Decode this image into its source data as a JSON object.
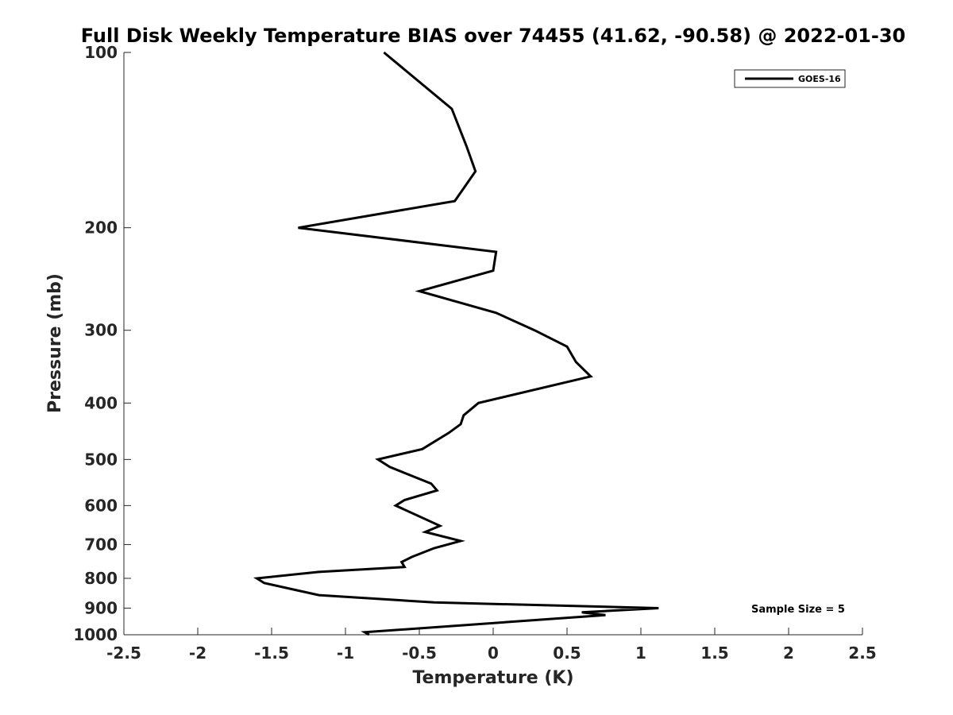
{
  "chart_data": {
    "type": "line",
    "title": "Full Disk Weekly Temperature BIAS over 74455 (41.62, -90.58) @ 2022-01-30",
    "xlabel": "Temperature (K)",
    "ylabel": "Pressure (mb)",
    "xlim": [
      -2.5,
      2.5
    ],
    "ylim": [
      1000,
      100
    ],
    "y_scale": "log",
    "y_reversed": true,
    "grid": false,
    "legend_position": "top-right",
    "x_ticks": [
      -2.5,
      -2,
      -1.5,
      -1,
      -0.5,
      0,
      0.5,
      1,
      1.5,
      2,
      2.5
    ],
    "x_tick_labels": [
      "-2.5",
      "-2",
      "-1.5",
      "-1",
      "-0.5",
      "0",
      "0.5",
      "1",
      "1.5",
      "2",
      "2.5"
    ],
    "y_ticks": [
      100,
      200,
      300,
      400,
      500,
      600,
      700,
      800,
      900,
      1000
    ],
    "y_tick_labels": [
      "100",
      "200",
      "300",
      "400",
      "500",
      "600",
      "700",
      "800",
      "900",
      "1000"
    ],
    "series": [
      {
        "name": "GOES-16",
        "color": "#000000",
        "points": [
          {
            "x": -0.74,
            "p": 100
          },
          {
            "x": -0.28,
            "p": 125
          },
          {
            "x": -0.18,
            "p": 145
          },
          {
            "x": -0.12,
            "p": 160
          },
          {
            "x": -0.26,
            "p": 180
          },
          {
            "x": -1.32,
            "p": 200
          },
          {
            "x": 0.02,
            "p": 220
          },
          {
            "x": 0.0,
            "p": 237
          },
          {
            "x": -0.5,
            "p": 257
          },
          {
            "x": 0.02,
            "p": 280
          },
          {
            "x": 0.28,
            "p": 300
          },
          {
            "x": 0.5,
            "p": 320
          },
          {
            "x": 0.56,
            "p": 340
          },
          {
            "x": 0.66,
            "p": 360
          },
          {
            "x": -0.1,
            "p": 400
          },
          {
            "x": -0.2,
            "p": 420
          },
          {
            "x": -0.22,
            "p": 435
          },
          {
            "x": -0.3,
            "p": 450
          },
          {
            "x": -0.48,
            "p": 480
          },
          {
            "x": -0.78,
            "p": 500
          },
          {
            "x": -0.7,
            "p": 515
          },
          {
            "x": -0.42,
            "p": 550
          },
          {
            "x": -0.38,
            "p": 565
          },
          {
            "x": -0.6,
            "p": 587
          },
          {
            "x": -0.66,
            "p": 600
          },
          {
            "x": -0.36,
            "p": 650
          },
          {
            "x": -0.46,
            "p": 666
          },
          {
            "x": -0.22,
            "p": 690
          },
          {
            "x": -0.4,
            "p": 710
          },
          {
            "x": -0.55,
            "p": 735
          },
          {
            "x": -0.62,
            "p": 750
          },
          {
            "x": -0.6,
            "p": 765
          },
          {
            "x": -1.18,
            "p": 780
          },
          {
            "x": -1.6,
            "p": 800
          },
          {
            "x": -1.55,
            "p": 815
          },
          {
            "x": -1.18,
            "p": 855
          },
          {
            "x": -0.4,
            "p": 880
          },
          {
            "x": 1.12,
            "p": 900
          },
          {
            "x": 0.6,
            "p": 915
          },
          {
            "x": 0.76,
            "p": 925
          },
          {
            "x": -0.87,
            "p": 990
          },
          {
            "x": -0.84,
            "p": 1000
          }
        ]
      }
    ],
    "annotation": "Sample Size = 5"
  }
}
